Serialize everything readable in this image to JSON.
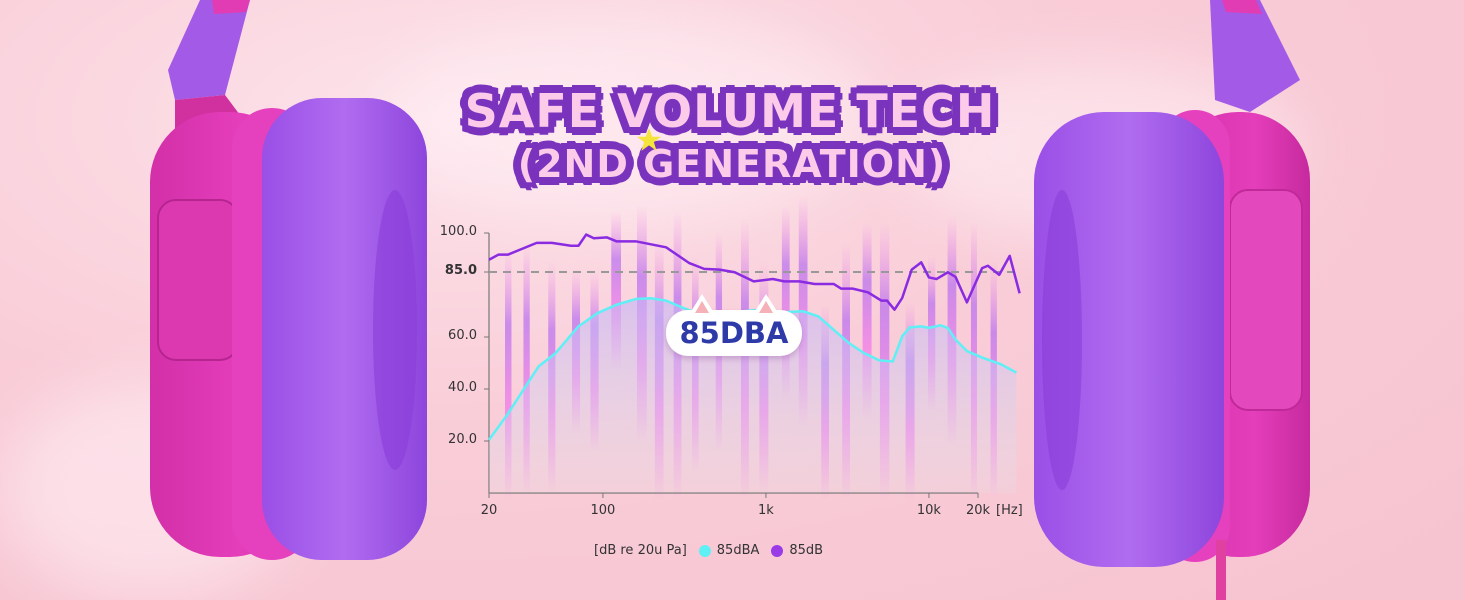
{
  "title": {
    "line1": "SAFE VOLUME TECH",
    "line2": "(2ND GENERATION)"
  },
  "badge": "85DBA",
  "colors": {
    "purple_line": "#8a2be2",
    "cyan_line": "#5ef0f5",
    "shell": "#e23cb5",
    "cushion": "#a45be8",
    "title_outline": "#7a33bd",
    "bars": "#f47ee8"
  },
  "chart_data": {
    "type": "line",
    "x_scale": "log",
    "xlim": [
      20,
      36000
    ],
    "ylim": [
      0,
      100
    ],
    "x_tick_labels": [
      "20",
      "100",
      "1k",
      "10k",
      "20k"
    ],
    "x_tick_values": [
      20,
      100,
      1000,
      10000,
      20000
    ],
    "x_unit": "[Hz]",
    "y_tick_labels": [
      "100.0",
      "85.0",
      "60.0",
      "40.0",
      "20.0"
    ],
    "y_tick_values": [
      100,
      85,
      60,
      40,
      20
    ],
    "reference_line": 85,
    "ylabel": "[dB re 20u Pa]",
    "legend_position": "bottom",
    "series": [
      {
        "name": "85dBA",
        "color": "#5ef0f5",
        "x": [
          20,
          25.5,
          31.6,
          40.3,
          51.3,
          60.3,
          70.8,
          92.7,
          121,
          159,
          197,
          244,
          303,
          375,
          466,
          643,
          841,
          1016,
          1294,
          1694,
          2100,
          2602,
          3226,
          4000,
          4966,
          6000,
          6855,
          7640,
          8970,
          10000,
          11750,
          13070,
          14560,
          17100,
          21200,
          27700,
          34400
        ],
        "y": [
          20.5,
          29.5,
          38.5,
          48.7,
          53.8,
          59.0,
          64.1,
          69.2,
          72.4,
          74.6,
          74.9,
          74.0,
          71.5,
          69.2,
          67.9,
          69.5,
          70.3,
          70.5,
          69.5,
          69.9,
          67.9,
          62.8,
          57.7,
          53.8,
          51.0,
          50.6,
          60.3,
          63.7,
          64.1,
          63.5,
          64.5,
          63.5,
          59.0,
          54.6,
          52.1,
          49.5,
          46.3
        ]
      },
      {
        "name": "85dB",
        "color": "#8a2be2",
        "x": [
          20,
          22.9,
          26.2,
          31.6,
          39.2,
          48.6,
          63.6,
          70.8,
          78.9,
          87.9,
          106,
          121,
          159,
          244,
          337,
          418,
          519,
          643,
          841,
          1102,
          1294,
          1603,
          1991,
          2602,
          2899,
          3405,
          4224,
          5100,
          5530,
          6150,
          6855,
          7840,
          8970,
          10000,
          11120,
          13070,
          14560,
          17100,
          21200,
          23000,
          27000,
          31300,
          36000
        ],
        "y": [
          89.7,
          91.7,
          91.7,
          93.8,
          96.2,
          96.2,
          95.1,
          95.1,
          99.4,
          98.0,
          98.3,
          96.8,
          96.8,
          94.5,
          88.5,
          86.2,
          85.9,
          84.9,
          81.4,
          82.3,
          81.4,
          81.4,
          80.4,
          80.4,
          78.6,
          78.6,
          77.2,
          74.0,
          74.0,
          70.5,
          75.0,
          85.9,
          88.7,
          82.9,
          82.3,
          84.9,
          83.1,
          73.3,
          86.5,
          87.4,
          83.9,
          91.2,
          76.8
        ]
      }
    ]
  }
}
